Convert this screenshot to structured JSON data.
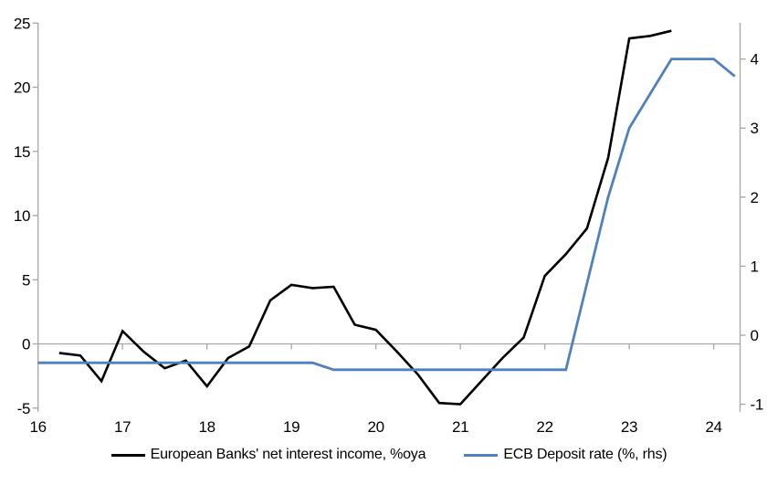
{
  "chart_data": {
    "type": "line",
    "title": "",
    "background_color": "#ffffff",
    "axis_color": "#A6A6A6",
    "tick_label_color": "#000000",
    "x_axis": {
      "ticks": [
        16,
        17,
        18,
        19,
        20,
        21,
        22,
        23,
        24
      ],
      "tick_labels": [
        "16",
        "17",
        "18",
        "19",
        "20",
        "21",
        "22",
        "23",
        "24"
      ],
      "xlim": [
        16,
        24.313
      ]
    },
    "left_axis": {
      "ticks": [
        -5,
        0,
        5,
        10,
        15,
        20,
        25
      ],
      "tick_labels": [
        "-5",
        "0",
        "5",
        "10",
        "15",
        "20",
        "25"
      ],
      "ylim": [
        -5.3,
        25.02
      ],
      "zero_line": true
    },
    "right_axis": {
      "ticks": [
        -1,
        0,
        1,
        2,
        3,
        4
      ],
      "tick_labels": [
        "-1",
        "0",
        "1",
        "2",
        "3",
        "4"
      ],
      "ylim": [
        -1.111,
        4.524
      ]
    },
    "grid": "zero-line-only",
    "legend_position": "bottom-center",
    "series": [
      {
        "id": "nii",
        "name": "European Banks' net interest income, %oya",
        "axis": "left",
        "color": "#000000",
        "x": [
          16.25,
          16.5,
          16.75,
          17.0,
          17.25,
          17.5,
          17.75,
          18.0,
          18.25,
          18.5,
          18.75,
          19.0,
          19.25,
          19.5,
          19.75,
          20.0,
          20.25,
          20.5,
          20.75,
          21.0,
          21.25,
          21.5,
          21.75,
          22.0,
          22.25,
          22.5,
          22.75,
          23.0,
          23.25,
          23.5
        ],
        "values": [
          -0.7,
          -0.9,
          -2.9,
          1.0,
          -0.6,
          -1.9,
          -1.3,
          -3.3,
          -1.1,
          -0.2,
          3.4,
          4.6,
          4.35,
          4.45,
          1.5,
          1.1,
          -0.6,
          -2.4,
          -4.6,
          -4.7,
          -2.9,
          -1.1,
          0.5,
          5.3,
          7.0,
          9.0,
          14.5,
          23.8,
          24.0,
          24.4
        ]
      },
      {
        "id": "ecb-deposit-rate",
        "name": "ECB Deposit rate (%, rhs)",
        "axis": "right",
        "color": "#4F81BD",
        "x": [
          16.0,
          16.25,
          16.5,
          16.75,
          17.0,
          17.25,
          17.5,
          17.75,
          18.0,
          18.25,
          18.5,
          18.75,
          19.0,
          19.25,
          19.5,
          19.75,
          20.0,
          20.25,
          20.5,
          20.75,
          21.0,
          21.25,
          21.5,
          21.75,
          22.0,
          22.25,
          22.5,
          22.75,
          23.0,
          23.25,
          23.5,
          23.75,
          24.0,
          24.25
        ],
        "values": [
          -0.4,
          -0.4,
          -0.4,
          -0.4,
          -0.4,
          -0.4,
          -0.4,
          -0.4,
          -0.4,
          -0.4,
          -0.4,
          -0.4,
          -0.4,
          -0.4,
          -0.5,
          -0.5,
          -0.5,
          -0.5,
          -0.5,
          -0.5,
          -0.5,
          -0.5,
          -0.5,
          -0.5,
          -0.5,
          -0.5,
          0.75,
          2.0,
          3.0,
          3.5,
          4.0,
          4.0,
          4.0,
          3.75
        ]
      }
    ]
  }
}
